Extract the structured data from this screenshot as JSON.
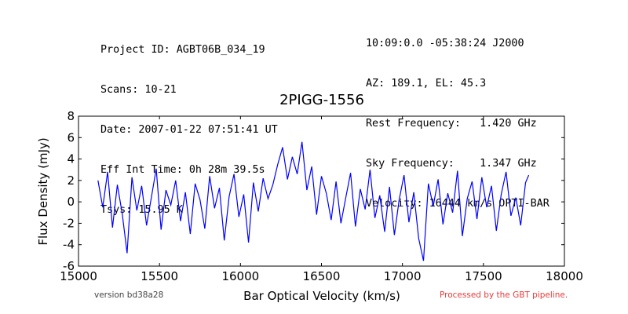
{
  "header": {
    "left": [
      "Project ID: AGBT06B_034_19",
      "Scans: 10-21",
      "Date: 2007-01-22 07:51:41 UT",
      "Eff Int Time: 0h 28m 39.5s",
      "Tsys: 15.95 K"
    ],
    "right": [
      "10:09:0.0 -05:38:24 J2000",
      "AZ: 189.1, EL: 45.3",
      "Rest Frequency:   1.420 GHz",
      "Sky Frequency:    1.347 GHz",
      "Velocity: 16444 km/s OPTI-BAR"
    ]
  },
  "footer": {
    "version": "version bd38a28",
    "pipeline": "Processed by the GBT pipeline."
  },
  "colors": {
    "series": "#0000ff",
    "pipeline_text": "#e8393a"
  },
  "chart_data": {
    "type": "line",
    "title": "2PIGG-1556",
    "xlabel": "Bar Optical Velocity (km/s)",
    "ylabel": "Flux Density (mJy)",
    "xlim": [
      15000,
      18000
    ],
    "ylim": [
      -6,
      8
    ],
    "xticks": [
      15000,
      15500,
      16000,
      16500,
      17000,
      17500,
      18000
    ],
    "yticks": [
      -6,
      -4,
      -2,
      0,
      2,
      4,
      6,
      8
    ],
    "grid": false,
    "legend": "none",
    "series": [
      {
        "x": [
          15120,
          15150,
          15180,
          15210,
          15240,
          15270,
          15300,
          15330,
          15360,
          15390,
          15420,
          15450,
          15480,
          15510,
          15540,
          15570,
          15600,
          15630,
          15660,
          15690,
          15720,
          15750,
          15780,
          15810,
          15840,
          15870,
          15900,
          15930,
          15960,
          15990,
          16020,
          16050,
          16080,
          16110,
          16140,
          16170,
          16200,
          16230,
          16260,
          16290,
          16320,
          16350,
          16380,
          16410,
          16440,
          16470,
          16500,
          16530,
          16560,
          16590,
          16620,
          16650,
          16680,
          16710,
          16740,
          16770,
          16800,
          16830,
          16860,
          16890,
          16920,
          16950,
          16980,
          17010,
          17040,
          17070,
          17100,
          17130,
          17160,
          17190,
          17220,
          17250,
          17280,
          17310,
          17340,
          17370,
          17400,
          17430,
          17460,
          17490,
          17520,
          17550,
          17580,
          17610,
          17640,
          17670,
          17700,
          17730,
          17760,
          17780
        ],
        "y": [
          2.0,
          -0.5,
          2.8,
          -2.4,
          1.6,
          -1.1,
          -4.8,
          2.3,
          -0.8,
          1.5,
          -2.2,
          0.4,
          3.1,
          -2.6,
          1.1,
          -0.3,
          2.0,
          -1.8,
          0.9,
          -3.0,
          1.7,
          0.2,
          -2.5,
          2.4,
          -0.6,
          1.3,
          -3.6,
          0.5,
          2.6,
          -1.4,
          0.7,
          -3.8,
          1.8,
          -0.9,
          2.2,
          0.3,
          1.6,
          3.5,
          5.1,
          2.1,
          4.2,
          2.6,
          5.6,
          1.1,
          3.3,
          -1.2,
          2.4,
          0.8,
          -1.7,
          1.9,
          -2.0,
          0.4,
          2.7,
          -2.3,
          1.2,
          -0.7,
          3.0,
          -1.5,
          0.6,
          -2.8,
          1.4,
          -3.1,
          0.2,
          2.5,
          -1.9,
          0.9,
          -3.4,
          -5.5,
          1.7,
          -0.4,
          2.1,
          -2.1,
          0.8,
          -1.0,
          2.9,
          -3.2,
          0.3,
          1.9,
          -1.6,
          2.3,
          -0.5,
          1.5,
          -2.7,
          0.7,
          2.8,
          -1.3,
          0.4,
          -2.2,
          1.8,
          2.5
        ]
      }
    ]
  }
}
